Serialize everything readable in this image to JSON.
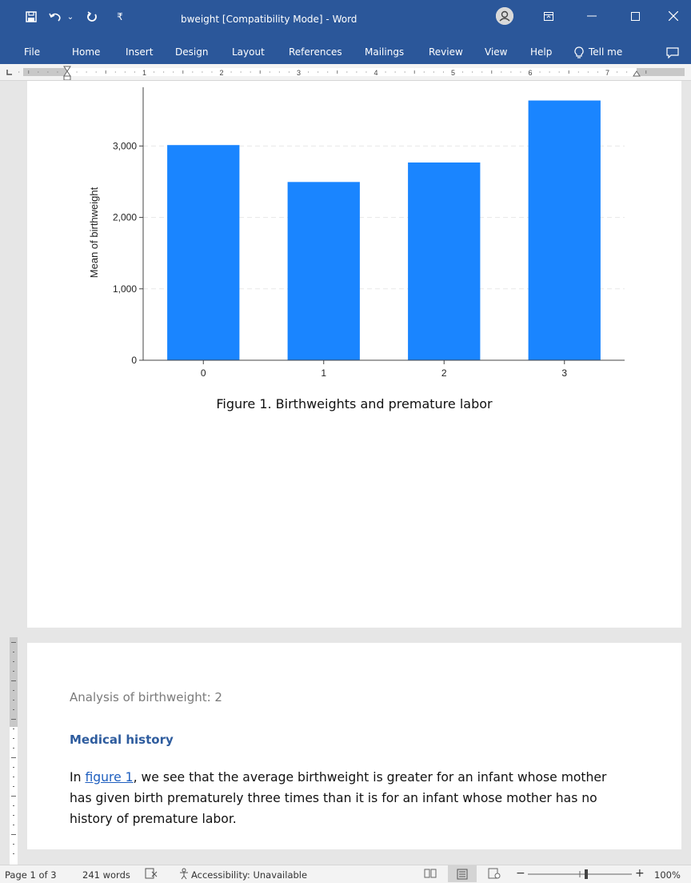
{
  "window": {
    "title": "bweight [Compatibility Mode]  -  Word",
    "quick_access": {
      "save": "save-icon",
      "undo": "undo-icon",
      "redo": "redo-icon",
      "customize": "customize-icon"
    },
    "controls": {
      "ribbon_display": "ribbon-display-icon",
      "minimize": "minimize-icon",
      "maximize": "maximize-icon",
      "close": "close-icon"
    },
    "accent_color": "#2b579a"
  },
  "ribbon": {
    "tabs": [
      "File",
      "Home",
      "Insert",
      "Design",
      "Layout",
      "References",
      "Mailings",
      "Review",
      "View",
      "Help"
    ],
    "tell_me": "Tell me",
    "comments_icon": "comment-icon"
  },
  "ruler": {
    "numbers": [
      "1",
      "2",
      "3",
      "4",
      "5",
      "6",
      "7"
    ]
  },
  "chart_data": {
    "type": "bar",
    "categories": [
      "0",
      "1",
      "2",
      "3"
    ],
    "values": [
      3013,
      2496,
      2769,
      3637
    ],
    "ylabel": "Mean of birthweight",
    "xlabel": "",
    "yticks": [
      "0",
      "1,000",
      "2,000",
      "3,000"
    ],
    "ytick_values": [
      0,
      1000,
      2000,
      3000
    ],
    "ylim": [
      0,
      3800
    ],
    "bar_color": "#1a85ff",
    "grid": true
  },
  "document": {
    "caption": "Figure 1. Birthweights and premature labor",
    "page2_header": "Analysis of birthweight: 2",
    "heading": "Medical history",
    "body_before": "In ",
    "body_link": "figure 1",
    "body_after": ", we see that the average birthweight is greater for an infant whose mother has given birth prematurely three times than it is for an infant whose mother has no history of premature labor.",
    "link_color": "#1f5fbf",
    "heading_color": "#2e5c9e"
  },
  "status": {
    "page": "Page 1 of 3",
    "words": "241 words",
    "accessibility": "Accessibility: Unavailable",
    "zoom": "100%"
  }
}
